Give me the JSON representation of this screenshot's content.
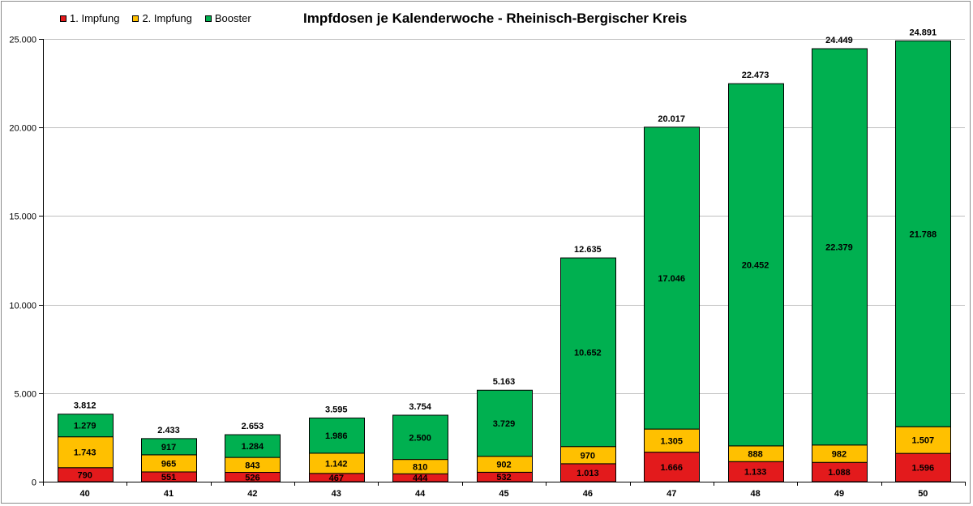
{
  "chart_data": {
    "type": "bar",
    "stacked": true,
    "title": "Impfdosen je Kalenderwoche - Rheinisch-Bergischer Kreis",
    "xlabel": "",
    "ylabel": "",
    "categories": [
      "40",
      "41",
      "42",
      "43",
      "44",
      "45",
      "46",
      "47",
      "48",
      "49",
      "50"
    ],
    "ylim": [
      0,
      25000
    ],
    "yticks": [
      0,
      5000,
      10000,
      15000,
      20000,
      25000
    ],
    "ytick_labels": [
      "0",
      "5.000",
      "10.000",
      "15.000",
      "20.000",
      "25.000"
    ],
    "grid": true,
    "legend_position": "top-left",
    "series": [
      {
        "name": "1. Impfung",
        "color": "#e31a1c",
        "values": [
          790,
          551,
          526,
          467,
          444,
          532,
          1013,
          1666,
          1133,
          1088,
          1596
        ]
      },
      {
        "name": "2. Impfung",
        "color": "#ffc000",
        "values": [
          1743,
          965,
          843,
          1142,
          810,
          902,
          970,
          1305,
          888,
          982,
          1507
        ]
      },
      {
        "name": "Booster",
        "color": "#00b050",
        "values": [
          1279,
          917,
          1284,
          1986,
          2500,
          3729,
          10652,
          17046,
          20452,
          22379,
          21788
        ]
      }
    ],
    "totals": [
      3812,
      2433,
      2653,
      3595,
      3754,
      5163,
      12635,
      20017,
      22473,
      24449,
      24891
    ]
  }
}
